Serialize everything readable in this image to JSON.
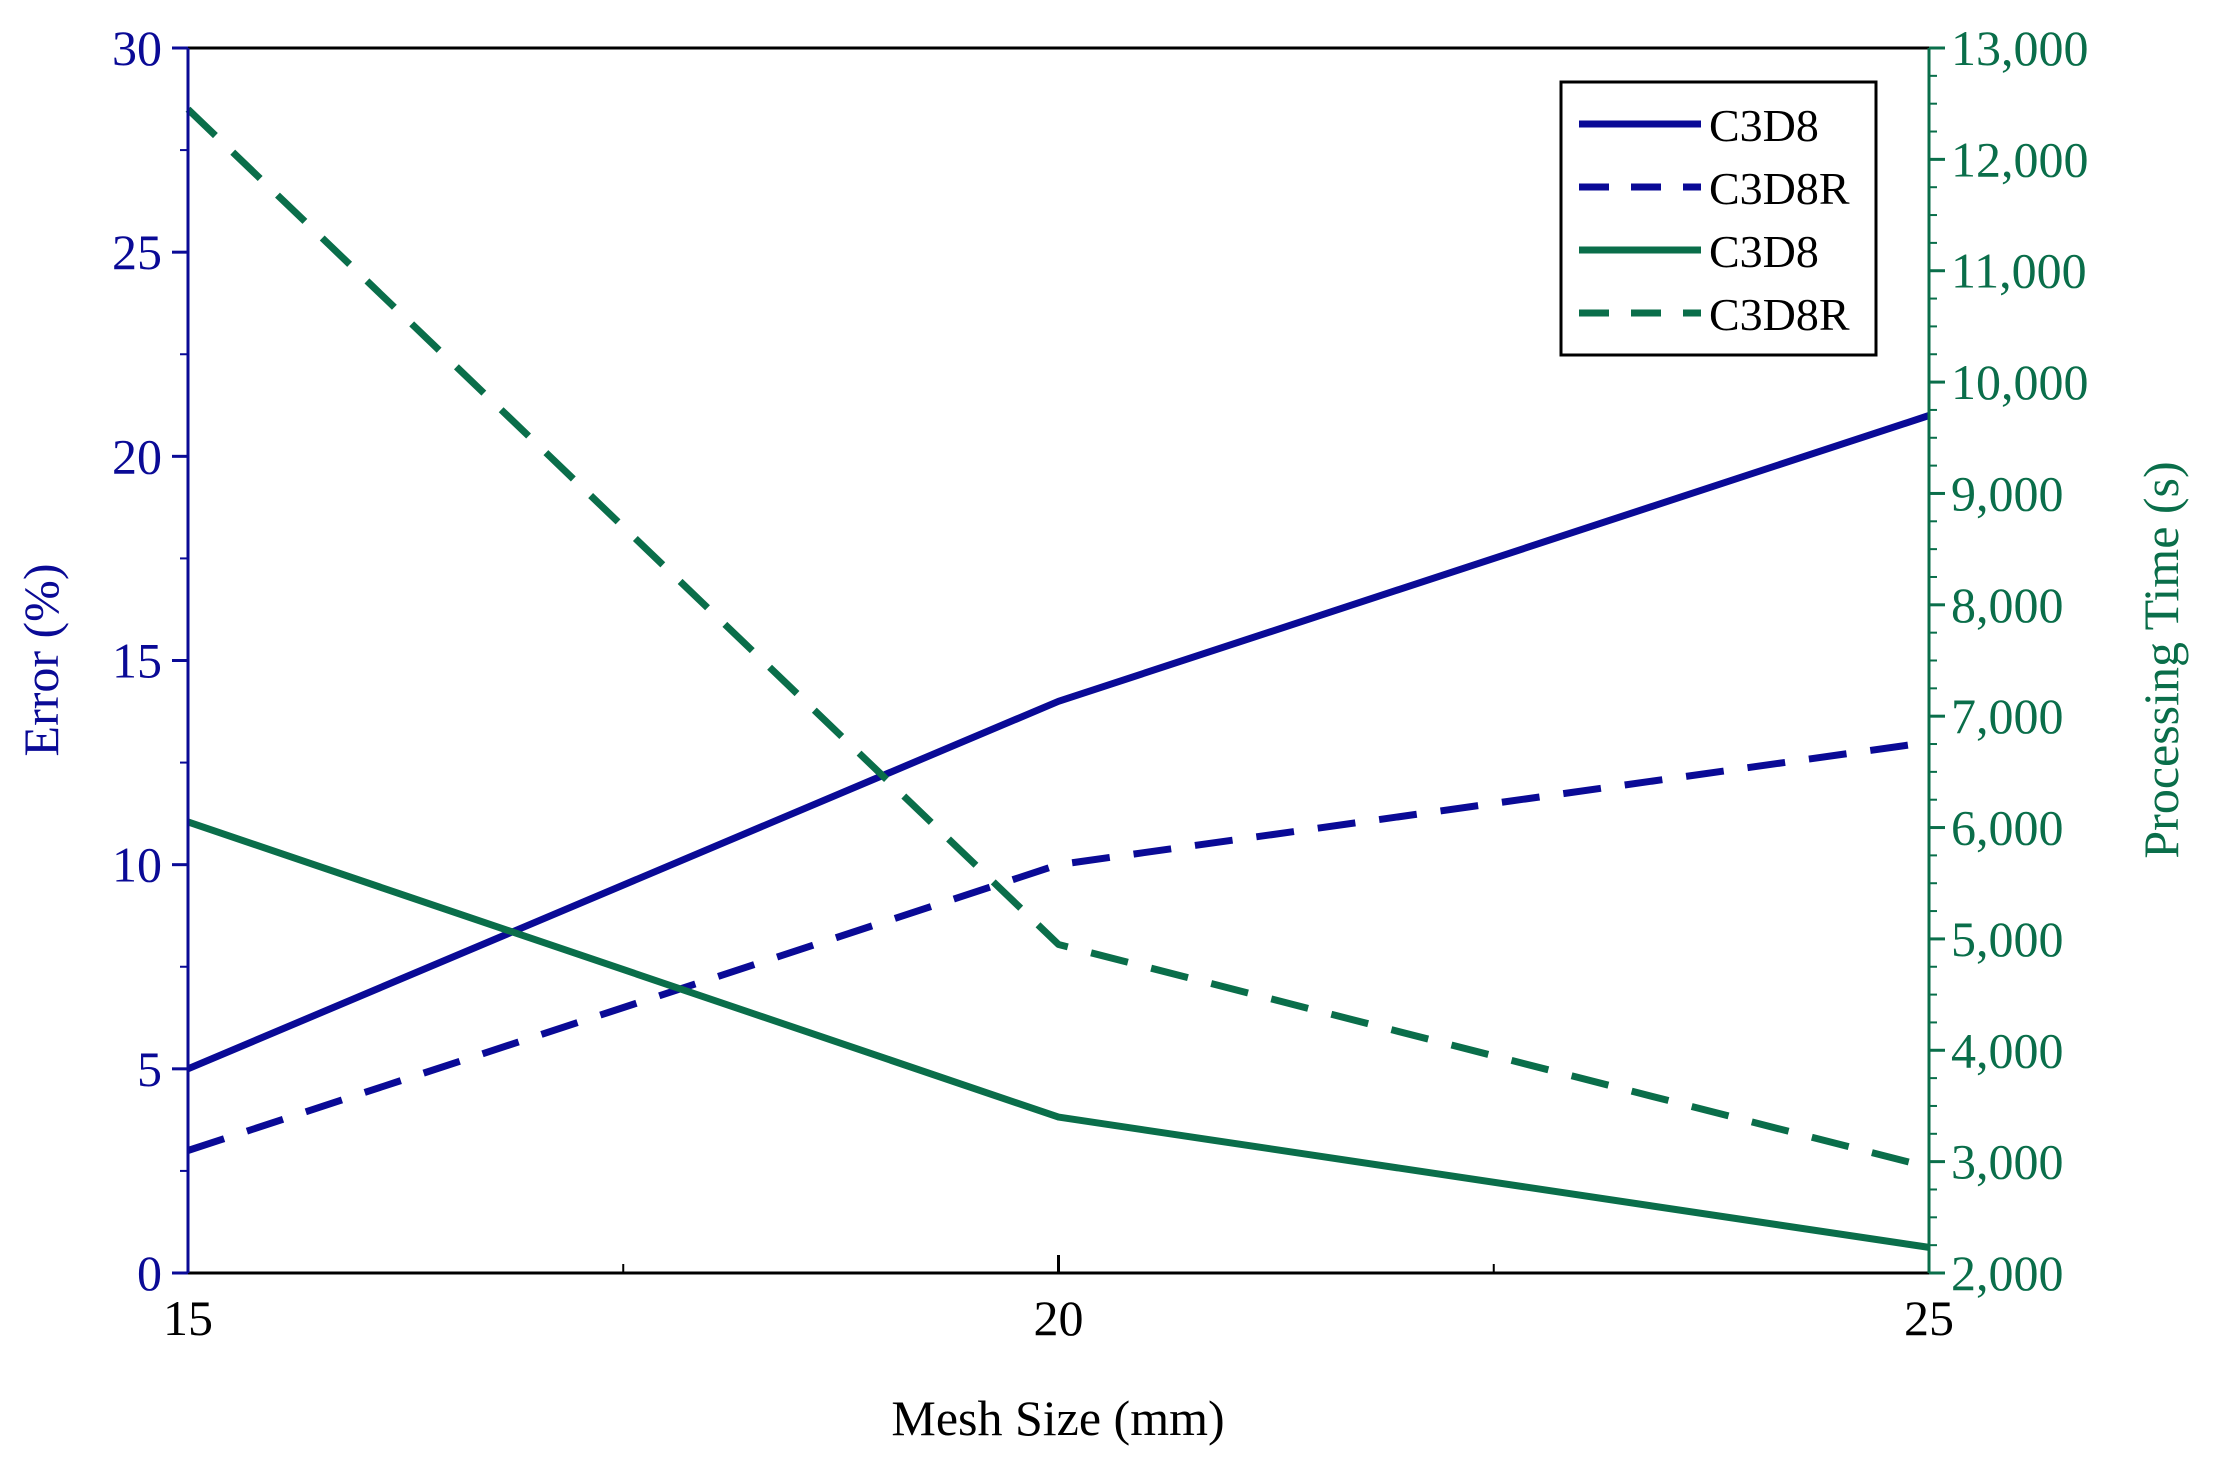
{
  "chart_data": {
    "type": "line",
    "x": [
      15,
      20,
      25
    ],
    "xlabel": "Mesh Size (mm)",
    "ylabel_left": "Error (%)",
    "ylabel_right": "Processing Time (s)",
    "xlim": [
      15,
      25
    ],
    "ylim_left": [
      0,
      30
    ],
    "ylim_right": [
      2000,
      13000
    ],
    "x_ticks": [
      "15",
      "20",
      "25"
    ],
    "y_ticks_left": [
      "0",
      "5",
      "10",
      "15",
      "20",
      "25",
      "30"
    ],
    "y_ticks_right": [
      "2,000",
      "3,000",
      "4,000",
      "5,000",
      "6,000",
      "7,000",
      "8,000",
      "9,000",
      "10,000",
      "11,000",
      "12,000",
      "13,000"
    ],
    "legend_position": "top-right",
    "colors": {
      "error": "#0a0a96",
      "time": "#0a6e4a"
    },
    "series": [
      {
        "name": "C3D8",
        "axis": "left",
        "style": "solid",
        "values": [
          5,
          14,
          21
        ]
      },
      {
        "name": "C3D8R",
        "axis": "left",
        "style": "dashed",
        "values": [
          3,
          10,
          13
        ]
      },
      {
        "name": "C3D8",
        "axis": "right",
        "style": "solid",
        "values": [
          6050,
          3400,
          2230
        ]
      },
      {
        "name": "C3D8R",
        "axis": "right",
        "style": "dashed",
        "values": [
          12450,
          4950,
          2950
        ]
      }
    ]
  }
}
